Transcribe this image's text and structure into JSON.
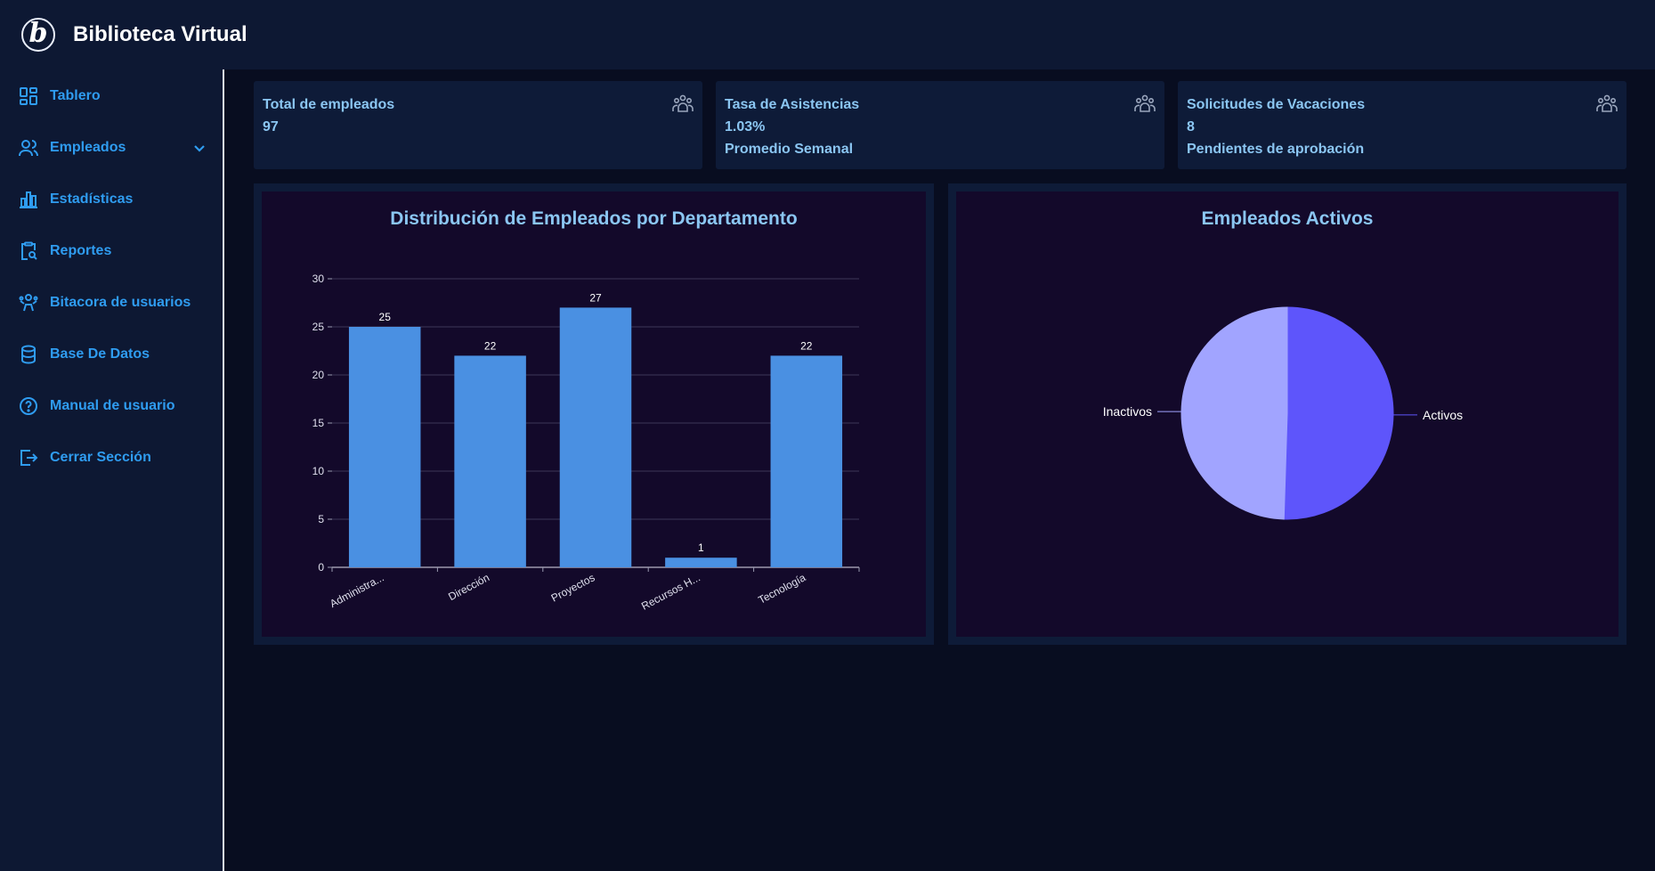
{
  "app": {
    "title": "Biblioteca Virtual",
    "logo_letter": "b"
  },
  "sidebar": {
    "items": [
      {
        "label": "Tablero",
        "icon": "dashboard-icon"
      },
      {
        "label": "Empleados",
        "icon": "users-icon",
        "expandable": true
      },
      {
        "label": "Estadísticas",
        "icon": "bar-chart-icon"
      },
      {
        "label": "Reportes",
        "icon": "report-search-icon"
      },
      {
        "label": "Bitacora de usuarios",
        "icon": "user-log-icon"
      },
      {
        "label": "Base De Datos",
        "icon": "database-icon"
      },
      {
        "label": "Manual de usuario",
        "icon": "help-icon"
      },
      {
        "label": "Cerrar Sección",
        "icon": "logout-icon"
      }
    ]
  },
  "cards": [
    {
      "title": "Total de empleados",
      "value": "97",
      "subtitle": "",
      "icon": "group-icon"
    },
    {
      "title": "Tasa de Asistencias",
      "value": "1.03%",
      "subtitle": "Promedio Semanal",
      "icon": "group-icon"
    },
    {
      "title": "Solicitudes de Vacaciones",
      "value": "8",
      "subtitle": "Pendientes de aprobación",
      "icon": "group-icon"
    }
  ],
  "colors": {
    "accent": "#2f9cf0",
    "card_text": "#8bc6f2",
    "bar": "#4a90e2",
    "pie_active": "#5e55fb",
    "pie_inactive": "#a1a4ff"
  },
  "chart_data": [
    {
      "type": "bar",
      "title": "Distribución de Empleados por Departamento",
      "categories": [
        "Administra...",
        "Dirección",
        "Proyectos",
        "Recursos H...",
        "Tecnología"
      ],
      "values": [
        25,
        22,
        27,
        1,
        22
      ],
      "data_labels": [
        "25",
        "22",
        "27",
        "1",
        "22"
      ],
      "yticks": [
        "0",
        "5",
        "10",
        "15",
        "20",
        "25",
        "30"
      ],
      "ylim": [
        0,
        30
      ],
      "xlabel": "",
      "ylabel": "",
      "grid": true
    },
    {
      "type": "pie",
      "title": "Empleados Activos",
      "labels": [
        "Activos",
        "Inactivos"
      ],
      "values": [
        50.5,
        49.5
      ]
    }
  ]
}
